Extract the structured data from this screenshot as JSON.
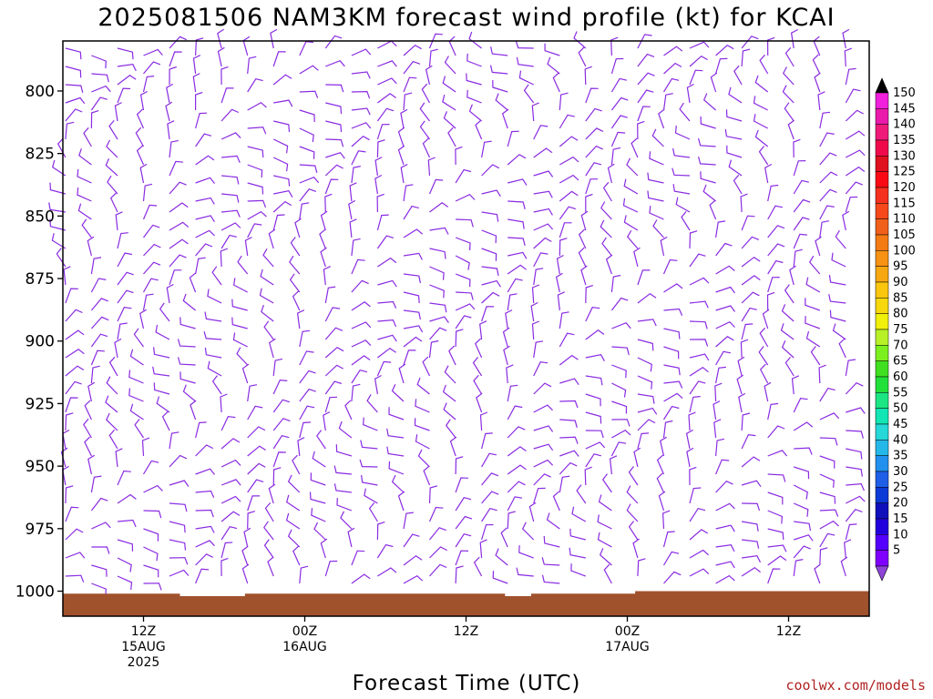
{
  "chart_data": {
    "type": "wind_profile_barbs",
    "title": "2025081506 NAM3KM forecast wind profile (kt) for KCAI",
    "xlabel": "Forecast Time (UTC)",
    "ylabel": "",
    "y_axis": {
      "scale": "pressure",
      "ylim": [
        1010,
        780
      ],
      "ticks": [
        800,
        825,
        850,
        875,
        900,
        925,
        950,
        975,
        1000
      ]
    },
    "x_axis": {
      "start": "2025-08-15 06Z",
      "end": "2025-08-17 18Z",
      "ticks": [
        {
          "time": "2025-08-15 12Z",
          "lines": [
            "12Z",
            "15AUG",
            "2025"
          ]
        },
        {
          "time": "2025-08-16 00Z",
          "lines": [
            "00Z",
            "16AUG"
          ]
        },
        {
          "time": "2025-08-16 12Z",
          "lines": [
            "12Z"
          ]
        },
        {
          "time": "2025-08-17 00Z",
          "lines": [
            "00Z",
            "17AUG"
          ]
        },
        {
          "time": "2025-08-17 12Z",
          "lines": [
            "12Z"
          ]
        }
      ]
    },
    "surface_pressure_hpa": [
      1001,
      1001,
      1001,
      1001,
      1001,
      1001,
      1001,
      1001,
      1001,
      1002,
      1002,
      1002,
      1002,
      1002,
      1001,
      1001,
      1001,
      1001,
      1001,
      1001,
      1001,
      1001,
      1001,
      1001,
      1001,
      1001,
      1001,
      1001,
      1001,
      1001,
      1001,
      1001,
      1001,
      1001,
      1002,
      1002,
      1001,
      1001,
      1001,
      1001,
      1001,
      1001,
      1001,
      1001,
      1000,
      1000,
      1000,
      1000,
      1000,
      1000,
      1000,
      1000,
      1000,
      1000,
      1000,
      1000,
      1000,
      1000,
      1000,
      1000,
      1000,
      1000
    ],
    "colorbar": {
      "label_values": [
        5,
        10,
        15,
        20,
        25,
        30,
        35,
        40,
        45,
        50,
        55,
        60,
        65,
        70,
        75,
        80,
        85,
        90,
        95,
        100,
        105,
        110,
        115,
        120,
        125,
        130,
        135,
        140,
        145,
        150
      ],
      "colors": [
        "#7f00ff",
        "#5500ff",
        "#2200dd",
        "#1010bb",
        "#0b3ad6",
        "#1f5fe8",
        "#2290ee",
        "#24b8e8",
        "#26d8d8",
        "#11e6b4",
        "#1ce684",
        "#22e03a",
        "#40e020",
        "#7cef1f",
        "#b8f028",
        "#f0f00a",
        "#f6d80c",
        "#fac60e",
        "#f7a811",
        "#f79214",
        "#f47a13",
        "#f0601a",
        "#f6481a",
        "#f6301e",
        "#fa0a14",
        "#e0101e",
        "#f00a4c",
        "#f01a7a",
        "#ea1aaa",
        "#f020dc"
      ],
      "extend_colors": {
        "low": "#8e44d8",
        "high": "#000000"
      }
    },
    "barb_color": "#8a2be2",
    "ground_color": "#a0522d"
  },
  "credit": "coolwx.com/models"
}
